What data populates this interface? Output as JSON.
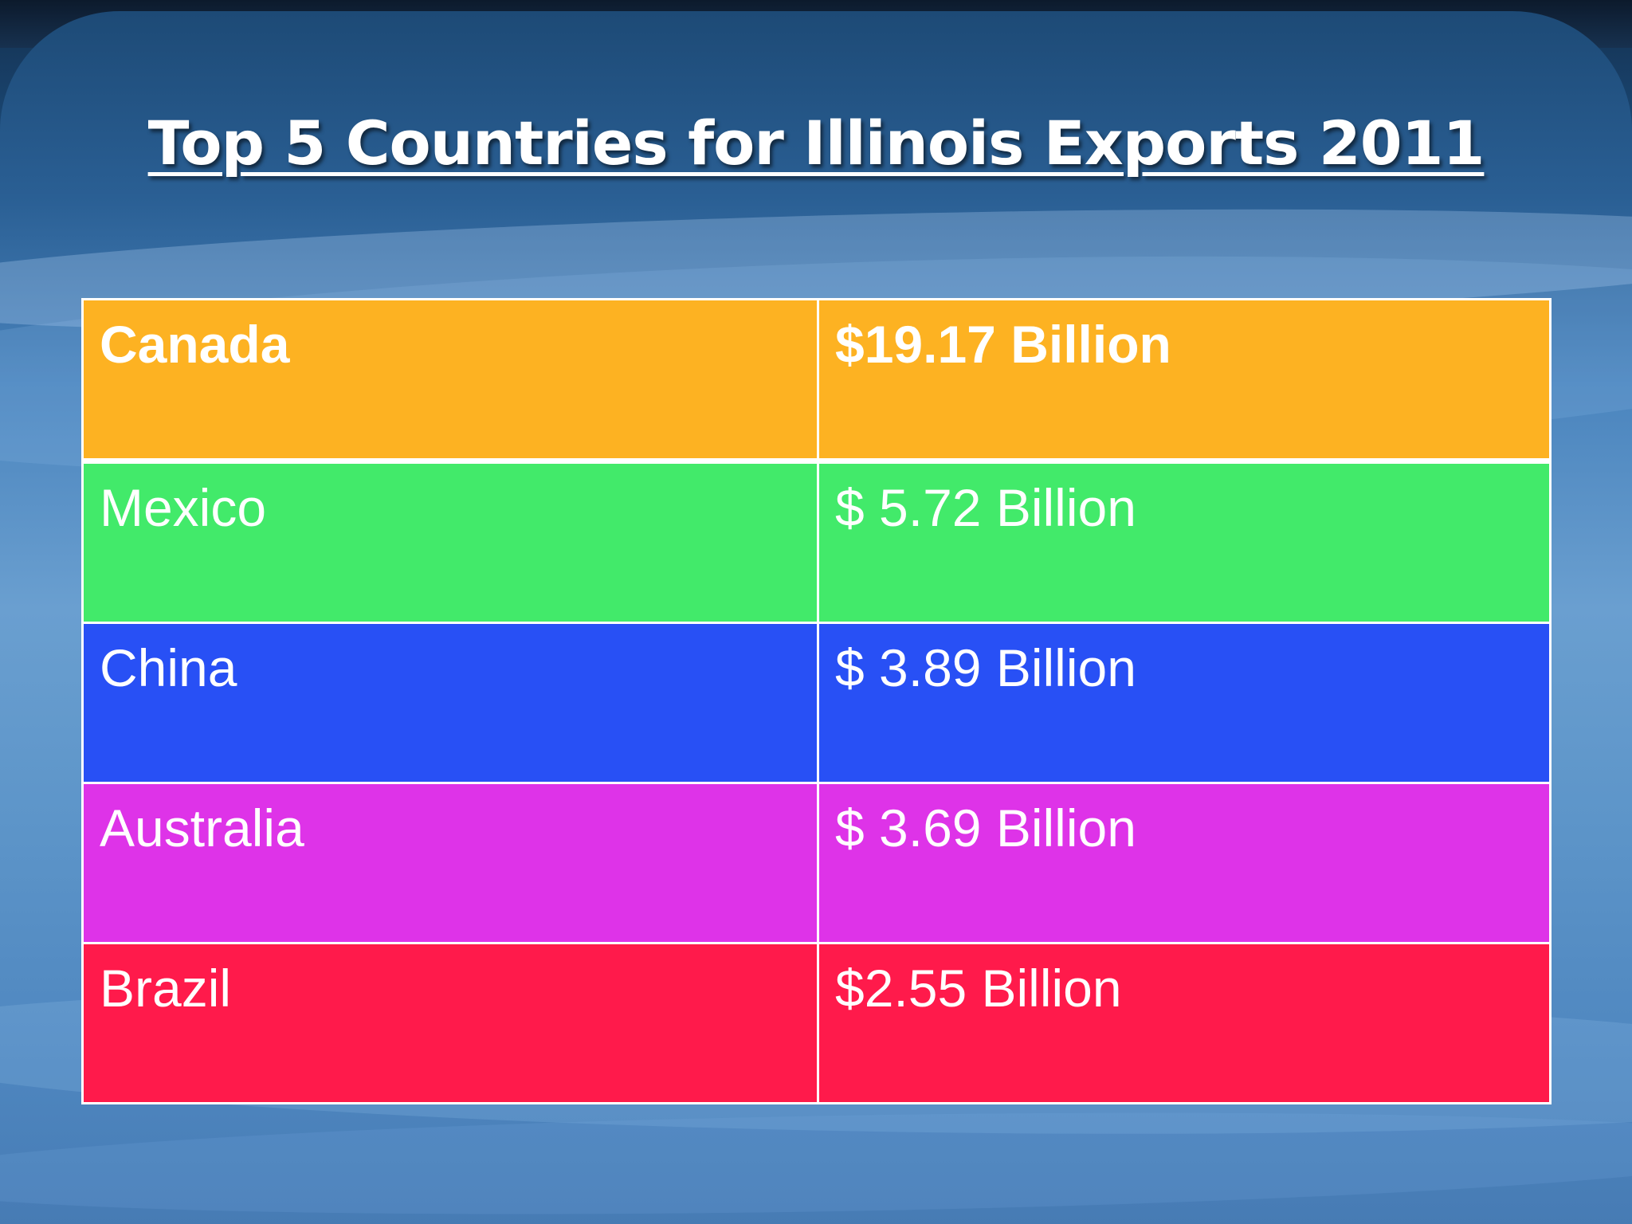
{
  "title": "Top 5 Countries for Illinois Exports 2011",
  "rows": [
    {
      "country": "Canada",
      "value": "$19.17 Billion",
      "color": "#FDB222",
      "bold": true
    },
    {
      "country": "Mexico",
      "value": "$ 5.72 Billion",
      "color": "#42EA6A",
      "bold": false
    },
    {
      "country": "China",
      "value": "$ 3.89 Billion",
      "color": "#2850F5",
      "bold": false
    },
    {
      "country": "Australia",
      "value": "$ 3.69 Billion",
      "color": "#DE33E8",
      "bold": false
    },
    {
      "country": "Brazil",
      "value": "$2.55 Billion",
      "color": "#FF1A4B",
      "bold": false
    }
  ]
}
